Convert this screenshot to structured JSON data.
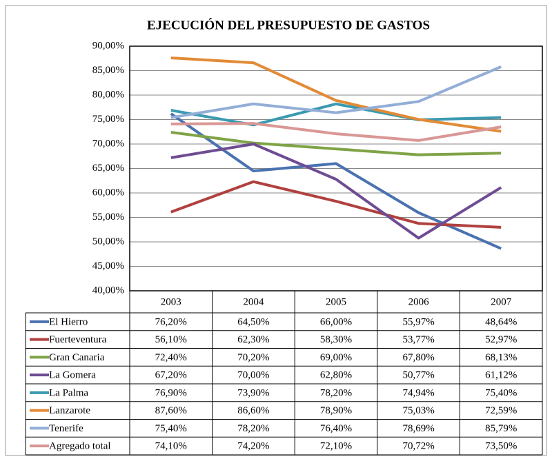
{
  "chart_data": {
    "type": "line",
    "title": "EJECUCIÓN DEL PRESUPUESTO  DE GASTOS",
    "categories": [
      "2003",
      "2004",
      "2005",
      "2006",
      "2007"
    ],
    "ylim": [
      40,
      90
    ],
    "yticks": [
      {
        "value": 40,
        "label": "40,00%"
      },
      {
        "value": 45,
        "label": "45,00%"
      },
      {
        "value": 50,
        "label": "50,00%"
      },
      {
        "value": 55,
        "label": "55,00%"
      },
      {
        "value": 60,
        "label": "60,00%"
      },
      {
        "value": 65,
        "label": "65,00%"
      },
      {
        "value": 70,
        "label": "70,00%"
      },
      {
        "value": 75,
        "label": "75,00%"
      },
      {
        "value": 80,
        "label": "80,00%"
      },
      {
        "value": 85,
        "label": "85,00%"
      },
      {
        "value": 90,
        "label": "90,00%"
      }
    ],
    "grid": true,
    "series": [
      {
        "name": "El Hierro",
        "color": "#4a72b0",
        "values": [
          76.2,
          64.5,
          66.0,
          55.97,
          48.64
        ],
        "value_labels": [
          "76,20%",
          "64,50%",
          "66,00%",
          "55,97%",
          "48,64%"
        ]
      },
      {
        "name": "Fuerteventura",
        "color": "#b0413e",
        "values": [
          56.1,
          62.3,
          58.3,
          53.77,
          52.97
        ],
        "value_labels": [
          "56,10%",
          "62,30%",
          "58,30%",
          "53,77%",
          "52,97%"
        ]
      },
      {
        "name": "Gran Canaria",
        "color": "#7fa346",
        "values": [
          72.4,
          70.2,
          69.0,
          67.8,
          68.13
        ],
        "value_labels": [
          "72,40%",
          "70,20%",
          "69,00%",
          "67,80%",
          "68,13%"
        ]
      },
      {
        "name": "La Gomera",
        "color": "#6e4c93",
        "values": [
          67.2,
          70.0,
          62.8,
          50.77,
          61.12
        ],
        "value_labels": [
          "67,20%",
          "70,00%",
          "62,80%",
          "50,77%",
          "61,12%"
        ]
      },
      {
        "name": "La Palma",
        "color": "#3a9ab0",
        "values": [
          76.9,
          73.9,
          78.2,
          74.94,
          75.4
        ],
        "value_labels": [
          "76,90%",
          "73,90%",
          "78,20%",
          "74,94%",
          "75,40%"
        ]
      },
      {
        "name": "Lanzarote",
        "color": "#e28a35",
        "values": [
          87.6,
          86.6,
          78.9,
          75.03,
          72.59
        ],
        "value_labels": [
          "87,60%",
          "86,60%",
          "78,90%",
          "75,03%",
          "72,59%"
        ]
      },
      {
        "name": "Tenerife",
        "color": "#93aed6",
        "values": [
          75.4,
          78.2,
          76.4,
          78.69,
          85.79
        ],
        "value_labels": [
          "75,40%",
          "78,20%",
          "76,40%",
          "78,69%",
          "85,79%"
        ]
      },
      {
        "name": "Agregado total",
        "color": "#d99795",
        "values": [
          74.1,
          74.2,
          72.1,
          70.72,
          73.5
        ],
        "value_labels": [
          "74,10%",
          "74,20%",
          "72,10%",
          "70,72%",
          "73,50%"
        ]
      }
    ]
  }
}
